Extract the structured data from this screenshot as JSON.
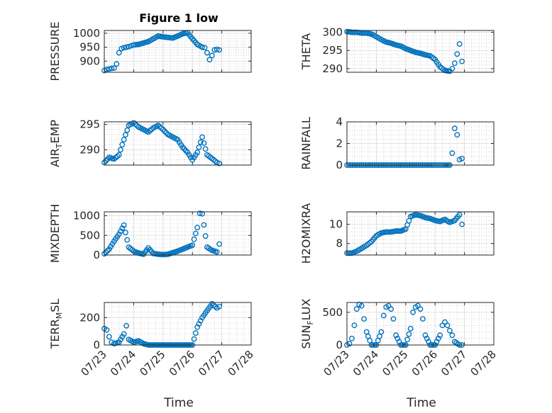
{
  "figure": {
    "title": "Figure 1 low",
    "background": "#ffffff",
    "marker_color": "#0072bd"
  },
  "x_axis": {
    "label": "Time",
    "tick_labels": [
      "07/23",
      "07/24",
      "07/25",
      "07/26",
      "07/27",
      "07/28"
    ]
  },
  "chart_data": [
    {
      "type": "scatter",
      "title": "Figure 1 low",
      "ylabel": "PRESSURE",
      "xlabel": "",
      "ylim": [
        860,
        1010
      ],
      "yticks": [
        "900",
        "950",
        "1000"
      ],
      "grid": true,
      "x": [
        "07/23 00:00",
        "07/23 02:00",
        "07/23 04:00",
        "07/23 06:00",
        "07/23 08:00",
        "07/23 10:00",
        "07/23 12:00",
        "07/23 14:00",
        "07/23 16:00",
        "07/23 18:00",
        "07/23 20:00",
        "07/23 22:00",
        "07/24 00:00",
        "07/24 04:00",
        "07/24 08:00",
        "07/24 12:00",
        "07/24 16:00",
        "07/24 20:00",
        "07/25 00:00",
        "07/25 04:00",
        "07/25 08:00",
        "07/25 12:00",
        "07/25 16:00",
        "07/25 20:00",
        "07/26 00:00",
        "07/26 04:00",
        "07/26 08:00",
        "07/26 10:00",
        "07/26 12:00",
        "07/26 14:00",
        "07/26 16:00",
        "07/26 18:00",
        "07/26 20:00",
        "07/26 22:00"
      ],
      "y": [
        866,
        870,
        872,
        874,
        875,
        890,
        930,
        945,
        948,
        950,
        952,
        955,
        958,
        960,
        965,
        970,
        980,
        990,
        987,
        985,
        983,
        990,
        998,
        1002,
        980,
        960,
        950,
        948,
        930,
        905,
        920,
        940,
        942,
        940
      ]
    },
    {
      "type": "scatter",
      "ylabel": "THETA",
      "xlabel": "",
      "ylim": [
        289,
        300.5
      ],
      "yticks": [
        "290",
        "295",
        "300"
      ],
      "grid": true,
      "x": [
        "07/23 00:00",
        "07/23 04:00",
        "07/23 08:00",
        "07/23 12:00",
        "07/23 16:00",
        "07/23 20:00",
        "07/24 00:00",
        "07/24 04:00",
        "07/24 08:00",
        "07/24 12:00",
        "07/24 16:00",
        "07/24 20:00",
        "07/25 00:00",
        "07/25 04:00",
        "07/25 08:00",
        "07/25 12:00",
        "07/25 16:00",
        "07/25 20:00",
        "07/26 00:00",
        "07/26 04:00",
        "07/26 08:00",
        "07/26 12:00",
        "07/26 14:00",
        "07/26 16:00",
        "07/26 18:00",
        "07/26 20:00",
        "07/26 22:00"
      ],
      "y": [
        300.2,
        300,
        300,
        299.8,
        299.8,
        299.5,
        298.8,
        298,
        297.3,
        297,
        296.5,
        296.2,
        295.5,
        295,
        294.5,
        294.2,
        293.8,
        293.5,
        292.5,
        290.5,
        289.5,
        289.3,
        290,
        291.5,
        294,
        296.8,
        292
      ]
    },
    {
      "type": "scatter",
      "ylabel": "AIR_TEMP",
      "xlabel": "",
      "ylim": [
        287,
        295.5
      ],
      "yticks": [
        "290",
        "295"
      ],
      "grid": true,
      "x": [
        "07/23 00:00",
        "07/23 04:00",
        "07/23 08:00",
        "07/23 12:00",
        "07/23 16:00",
        "07/23 20:00",
        "07/24 00:00",
        "07/24 04:00",
        "07/24 08:00",
        "07/24 12:00",
        "07/24 16:00",
        "07/24 20:00",
        "07/25 00:00",
        "07/25 04:00",
        "07/25 08:00",
        "07/25 12:00",
        "07/25 16:00",
        "07/25 20:00",
        "07/26 00:00",
        "07/26 04:00",
        "07/26 08:00",
        "07/26 12:00",
        "07/26 16:00",
        "07/26 20:00",
        "07/26 22:00"
      ],
      "y": [
        287.5,
        288.5,
        288.2,
        289,
        292,
        294.8,
        295.3,
        294.5,
        294,
        293.5,
        294.3,
        294.8,
        294,
        293,
        292.5,
        292,
        290.5,
        289.5,
        288,
        289.5,
        292.5,
        289,
        288.3,
        287.5,
        287.3
      ]
    },
    {
      "type": "scatter",
      "ylabel": "RAINFALL",
      "xlabel": "",
      "ylim": [
        0,
        4
      ],
      "yticks": [
        "0",
        "2",
        "4"
      ],
      "grid": true,
      "x": [
        "07/23 00:00",
        "07/23 12:00",
        "07/24 00:00",
        "07/24 12:00",
        "07/25 00:00",
        "07/25 12:00",
        "07/26 00:00",
        "07/26 08:00",
        "07/26 12:00",
        "07/26 14:00",
        "07/26 16:00",
        "07/26 18:00",
        "07/26 20:00",
        "07/26 22:00"
      ],
      "y": [
        0,
        0,
        0,
        0,
        0,
        0,
        0,
        0,
        0,
        1.1,
        3.4,
        2.8,
        0.5,
        0.6
      ]
    },
    {
      "type": "scatter",
      "ylabel": "MIXDEPTH",
      "xlabel": "",
      "ylim": [
        0,
        1100
      ],
      "yticks": [
        "0",
        "500",
        "1000"
      ],
      "grid": true,
      "x": [
        "07/23 00:00",
        "07/23 04:00",
        "07/23 08:00",
        "07/23 12:00",
        "07/23 16:00",
        "07/23 20:00",
        "07/24 00:00",
        "07/24 04:00",
        "07/24 08:00",
        "07/24 12:00",
        "07/24 16:00",
        "07/24 20:00",
        "07/25 00:00",
        "07/25 04:00",
        "07/25 08:00",
        "07/25 12:00",
        "07/25 16:00",
        "07/25 20:00",
        "07/26 00:00",
        "07/26 04:00",
        "07/26 06:00",
        "07/26 08:00",
        "07/26 12:00",
        "07/26 16:00",
        "07/26 20:00",
        "07/26 22:00"
      ],
      "y": [
        30,
        150,
        350,
        530,
        760,
        200,
        100,
        50,
        20,
        180,
        40,
        20,
        10,
        20,
        60,
        100,
        150,
        200,
        250,
        700,
        1060,
        1050,
        200,
        120,
        80,
        280
      ]
    },
    {
      "type": "scatter",
      "ylabel": "H2OMIXRA",
      "xlabel": "",
      "ylim": [
        6.8,
        11.3
      ],
      "yticks": [
        "8",
        "10"
      ],
      "grid": true,
      "x": [
        "07/23 00:00",
        "07/23 04:00",
        "07/23 08:00",
        "07/23 12:00",
        "07/23 16:00",
        "07/23 20:00",
        "07/24 00:00",
        "07/24 04:00",
        "07/24 08:00",
        "07/24 12:00",
        "07/24 16:00",
        "07/24 20:00",
        "07/25 00:00",
        "07/25 04:00",
        "07/25 08:00",
        "07/25 12:00",
        "07/25 16:00",
        "07/25 20:00",
        "07/26 00:00",
        "07/26 04:00",
        "07/26 08:00",
        "07/26 12:00",
        "07/26 16:00",
        "07/26 20:00",
        "07/26 22:00"
      ],
      "y": [
        7,
        7,
        7.2,
        7.5,
        7.8,
        8.2,
        8.8,
        9.1,
        9.2,
        9.2,
        9.3,
        9.3,
        9.5,
        10.8,
        11,
        10.9,
        10.7,
        10.6,
        10.4,
        10.3,
        10.5,
        10.2,
        10.4,
        11,
        10
      ]
    },
    {
      "type": "scatter",
      "ylabel": "TERR_MSL",
      "xlabel": "Time",
      "ylim": [
        0,
        310
      ],
      "yticks": [
        "0",
        "200"
      ],
      "grid": true,
      "x": [
        "07/23 00:00",
        "07/23 02:00",
        "07/23 04:00",
        "07/23 06:00",
        "07/23 08:00",
        "07/23 12:00",
        "07/23 16:00",
        "07/23 18:00",
        "07/23 20:00",
        "07/24 00:00",
        "07/24 04:00",
        "07/24 08:00",
        "07/24 12:00",
        "07/24 16:00",
        "07/24 20:00",
        "07/25 00:00",
        "07/25 04:00",
        "07/25 08:00",
        "07/25 12:00",
        "07/25 16:00",
        "07/25 20:00",
        "07/26 00:00",
        "07/26 04:00",
        "07/26 08:00",
        "07/26 12:00",
        "07/26 16:00",
        "07/26 20:00",
        "07/26 22:00"
      ],
      "y": [
        120,
        110,
        60,
        20,
        10,
        20,
        80,
        140,
        40,
        20,
        30,
        10,
        0,
        0,
        0,
        0,
        0,
        0,
        0,
        0,
        0,
        0,
        130,
        200,
        250,
        300,
        270,
        280
      ]
    },
    {
      "type": "scatter",
      "ylabel": "SUN_FLUX",
      "xlabel": "Time",
      "ylim": [
        0,
        650
      ],
      "yticks": [
        "0",
        "500"
      ],
      "grid": true,
      "x": [
        "07/23 00:00",
        "07/23 02:00",
        "07/23 04:00",
        "07/23 06:00",
        "07/23 08:00",
        "07/23 10:00",
        "07/23 12:00",
        "07/23 14:00",
        "07/23 16:00",
        "07/23 20:00",
        "07/24 00:00",
        "07/24 04:00",
        "07/24 06:00",
        "07/24 08:00",
        "07/24 10:00",
        "07/24 12:00",
        "07/24 14:00",
        "07/24 16:00",
        "07/24 20:00",
        "07/25 00:00",
        "07/25 04:00",
        "07/25 06:00",
        "07/25 08:00",
        "07/25 10:00",
        "07/25 12:00",
        "07/25 14:00",
        "07/25 16:00",
        "07/25 20:00",
        "07/26 00:00",
        "07/26 04:00",
        "07/26 06:00",
        "07/26 08:00",
        "07/26 10:00",
        "07/26 12:00",
        "07/26 14:00",
        "07/26 16:00",
        "07/26 20:00",
        "07/26 22:00"
      ],
      "y": [
        0,
        20,
        100,
        300,
        550,
        620,
        600,
        400,
        200,
        0,
        0,
        200,
        450,
        580,
        600,
        550,
        400,
        150,
        0,
        0,
        250,
        500,
        580,
        600,
        550,
        400,
        150,
        0,
        0,
        150,
        300,
        350,
        300,
        220,
        150,
        50,
        0,
        0
      ]
    }
  ]
}
